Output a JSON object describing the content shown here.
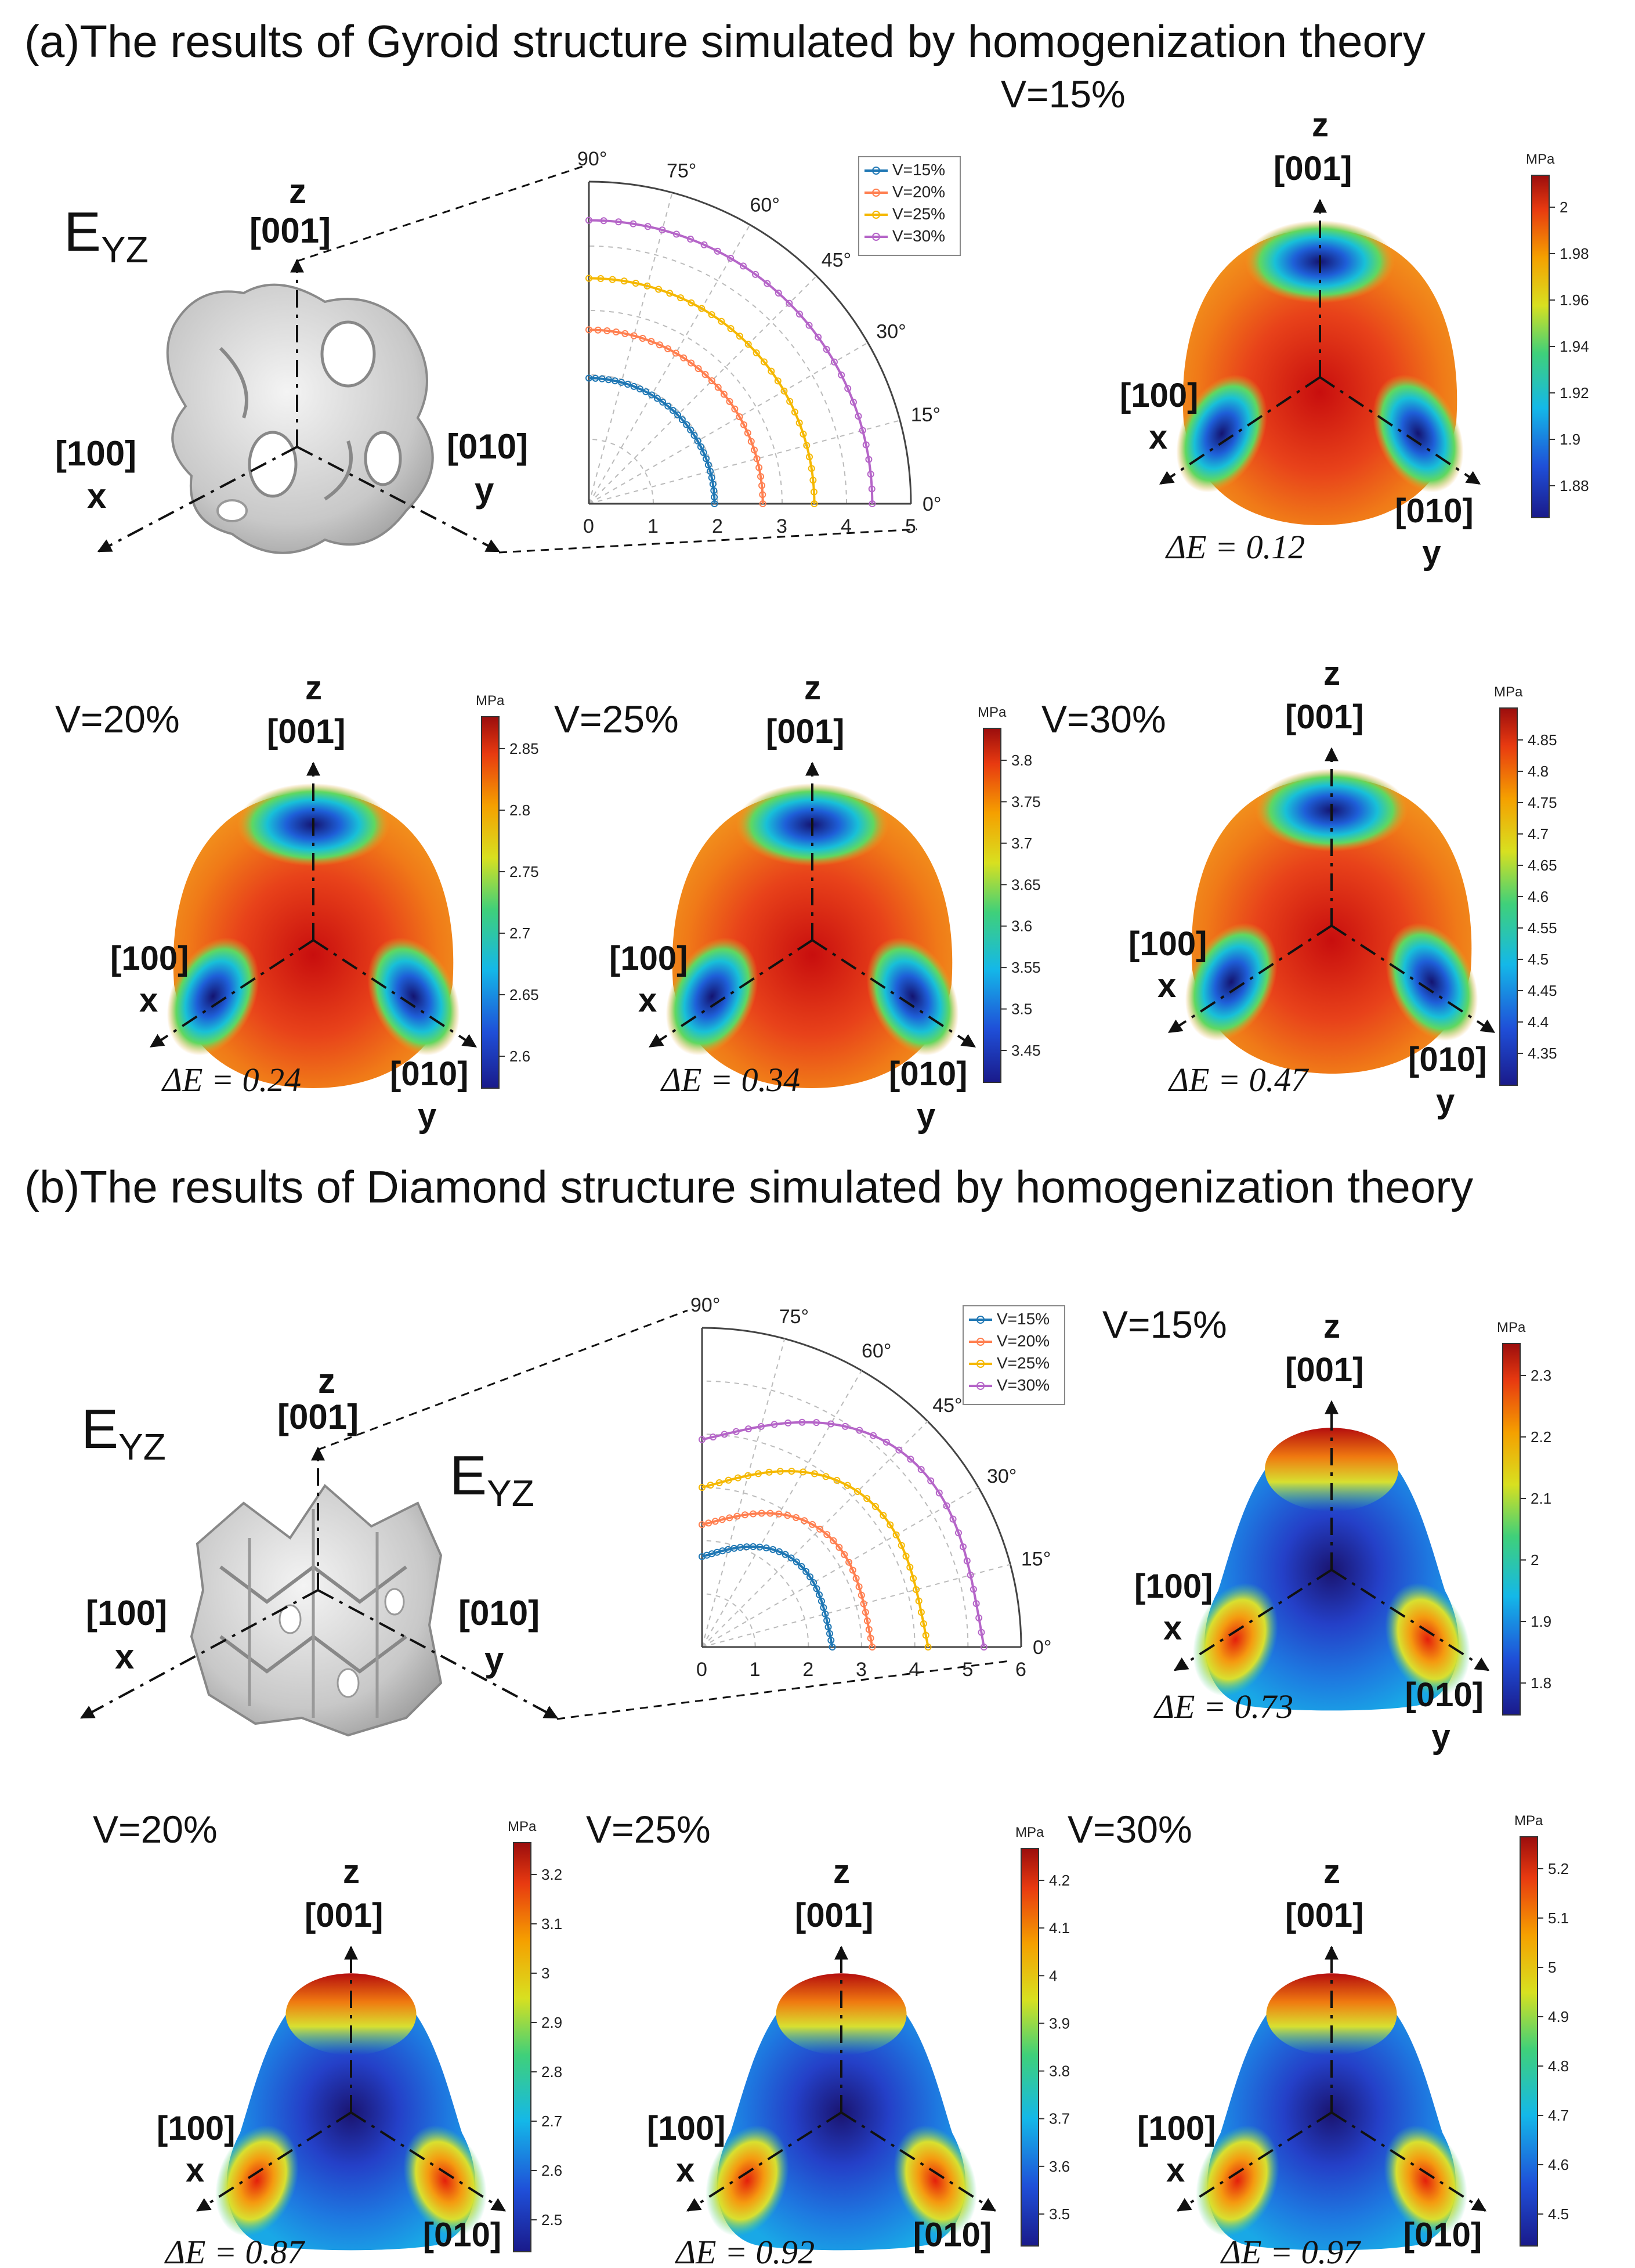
{
  "title_a": "(a)The results of Gyroid structure simulated by homogenization theory",
  "title_b": "(b)The results of Diamond structure simulated by homogenization theory",
  "eyz": "E",
  "eyz_sub": "YZ",
  "axes": {
    "z": "z",
    "z_idx": "[001]",
    "x": "x",
    "x_idx": "[100]",
    "y": "y",
    "y_idx": "[010]"
  },
  "unit": "MPa",
  "polar_a": {
    "angle_labels": [
      "0°",
      "15°",
      "30°",
      "45°",
      "60°",
      "75°",
      "90°"
    ],
    "radial_ticks": [
      "0",
      "1",
      "2",
      "3",
      "4",
      "5"
    ],
    "rmax": 5,
    "series": [
      {
        "name": "V=15%",
        "color": "#1f77b4",
        "r0": 1.95,
        "r90": 1.95
      },
      {
        "name": "V=20%",
        "color": "#ff7f50",
        "r0": 2.7,
        "r90": 2.7
      },
      {
        "name": "V=25%",
        "color": "#f5b800",
        "r0": 3.5,
        "r90": 3.5
      },
      {
        "name": "V=30%",
        "color": "#b565c8",
        "r0": 4.4,
        "r90": 4.4
      }
    ]
  },
  "polar_b": {
    "angle_labels": [
      "0°",
      "15°",
      "30°",
      "45°",
      "60°",
      "75°",
      "90°"
    ],
    "radial_ticks": [
      "0",
      "1",
      "2",
      "3",
      "4",
      "5",
      "6"
    ],
    "rmax": 6,
    "series": [
      {
        "name": "V=15%",
        "color": "#1f77b4",
        "r0": 2.45,
        "r90": 1.7
      },
      {
        "name": "V=20%",
        "color": "#ff7f50",
        "r0": 3.2,
        "r90": 2.3
      },
      {
        "name": "V=25%",
        "color": "#f5b800",
        "r0": 4.25,
        "r90": 3.0
      },
      {
        "name": "V=30%",
        "color": "#b565c8",
        "r0": 5.3,
        "r90": 3.9
      }
    ]
  },
  "surfaces": [
    {
      "id": "a15",
      "label": "V=15%",
      "de": "ΔE = 0.12",
      "ticks": [
        "2",
        "1.98",
        "1.96",
        "1.94",
        "1.92",
        "1.9",
        "1.88"
      ],
      "type": "gyroid"
    },
    {
      "id": "a20",
      "label": "V=20%",
      "de": "ΔE = 0.24",
      "ticks": [
        "2.85",
        "2.8",
        "2.75",
        "2.7",
        "2.65",
        "2.6"
      ],
      "type": "gyroid"
    },
    {
      "id": "a25",
      "label": "V=25%",
      "de": "ΔE = 0.34",
      "ticks": [
        "3.8",
        "3.75",
        "3.7",
        "3.65",
        "3.6",
        "3.55",
        "3.5",
        "3.45"
      ],
      "type": "gyroid"
    },
    {
      "id": "a30",
      "label": "V=30%",
      "de": "ΔE = 0.47",
      "ticks": [
        "4.85",
        "4.8",
        "4.75",
        "4.7",
        "4.65",
        "4.6",
        "4.55",
        "4.5",
        "4.45",
        "4.4",
        "4.35"
      ],
      "type": "gyroid"
    },
    {
      "id": "b15",
      "label": "V=15%",
      "de": "ΔE = 0.73",
      "ticks": [
        "2.3",
        "2.2",
        "2.1",
        "2",
        "1.9",
        "1.8"
      ],
      "type": "diamond"
    },
    {
      "id": "b20",
      "label": "V=20%",
      "de": "ΔE = 0.87",
      "ticks": [
        "3.2",
        "3.1",
        "3",
        "2.9",
        "2.8",
        "2.7",
        "2.6",
        "2.5"
      ],
      "type": "diamond"
    },
    {
      "id": "b25",
      "label": "V=25%",
      "de": "ΔE = 0.92",
      "ticks": [
        "4.2",
        "4.1",
        "4",
        "3.9",
        "3.8",
        "3.7",
        "3.6",
        "3.5"
      ],
      "type": "diamond"
    },
    {
      "id": "b30",
      "label": "V=30%",
      "de": "ΔE = 0.97",
      "ticks": [
        "5.2",
        "5.1",
        "5",
        "4.9",
        "4.8",
        "4.7",
        "4.6",
        "4.5"
      ],
      "type": "diamond"
    }
  ]
}
